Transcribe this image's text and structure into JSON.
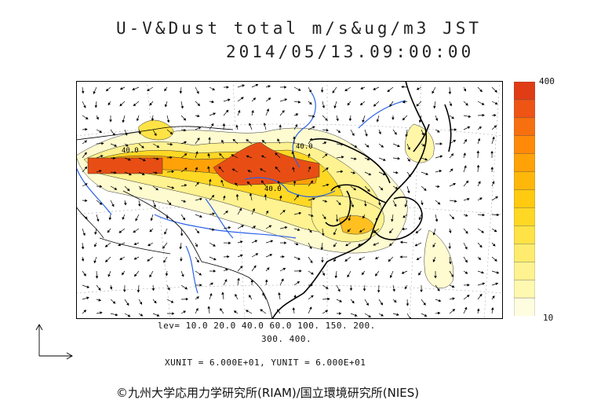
{
  "title": "U-V&Dust total m/s&ug/m3 JST",
  "datetime": "2014/05/13.09:00:00",
  "colorbar": {
    "max_label": "400",
    "min_label": "10",
    "colors": [
      "#fffde0",
      "#fff8b0",
      "#fff290",
      "#ffec6e",
      "#ffe346",
      "#ffd824",
      "#ffca10",
      "#ffb80a",
      "#ffa208",
      "#ff8a0a",
      "#f77010",
      "#ee5414",
      "#e03c16"
    ]
  },
  "levels_line1": "lev= 10.0 20.0 40.0 60.0 100. 150. 200.",
  "levels_line2": "300. 400.",
  "units": "XUNIT = 6.000E+01, YUNIT = 6.000E+01",
  "copyright": "©九州大学応用力学研究所(RIAM)/国立環境研究所(NIES)"
}
